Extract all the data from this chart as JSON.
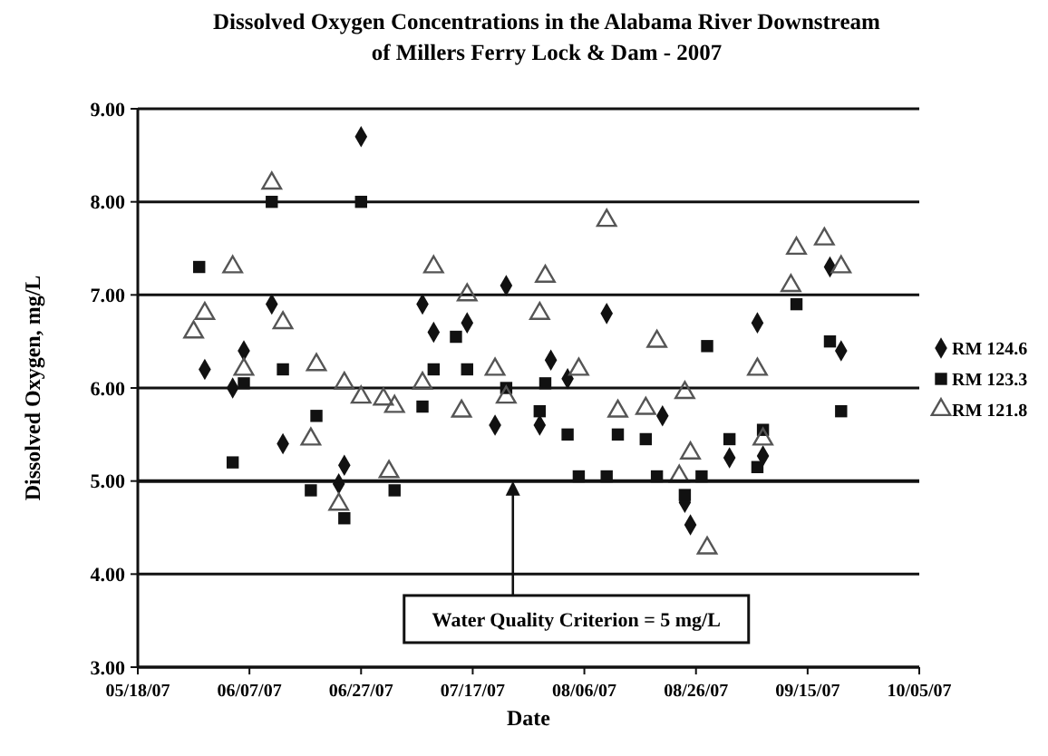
{
  "chart_data": {
    "type": "scatter",
    "title": "Dissolved Oxygen Concentrations in the Alabama River Downstream\nof Millers Ferry Lock & Dam - 2007",
    "xlabel": "Date",
    "ylabel": "Dissolved Oxygen, mg/L",
    "xlim": [
      "2007-05-18",
      "2007-10-05"
    ],
    "xticks": [
      {
        "value": "2007-05-18",
        "label": "05/18/07"
      },
      {
        "value": "2007-06-07",
        "label": "06/07/07"
      },
      {
        "value": "2007-06-27",
        "label": "06/27/07"
      },
      {
        "value": "2007-07-17",
        "label": "07/17/07"
      },
      {
        "value": "2007-08-06",
        "label": "08/06/07"
      },
      {
        "value": "2007-08-26",
        "label": "08/26/07"
      },
      {
        "value": "2007-09-15",
        "label": "09/15/07"
      },
      {
        "value": "2007-10-05",
        "label": "10/05/07"
      }
    ],
    "ylim": [
      3,
      9
    ],
    "yticks": [
      {
        "value": 3,
        "label": "3.00"
      },
      {
        "value": 4,
        "label": "4.00"
      },
      {
        "value": 5,
        "label": "5.00"
      },
      {
        "value": 6,
        "label": "6.00"
      },
      {
        "value": 7,
        "label": "7.00"
      },
      {
        "value": 8,
        "label": "8.00"
      },
      {
        "value": 9,
        "label": "9.00"
      }
    ],
    "grid": "y",
    "legend": "right",
    "ref_lines": [
      {
        "axis": "y",
        "value": 5,
        "label": "Water Quality Criterion = 5 mg/L"
      }
    ],
    "series": [
      {
        "name": "RM 124.6",
        "color": "#111111",
        "marker": "diamond",
        "x": [
          "2007-05-30",
          "2007-06-04",
          "2007-06-06",
          "2007-06-11",
          "2007-06-13",
          "2007-06-23",
          "2007-06-24",
          "2007-06-27",
          "2007-07-08",
          "2007-07-10",
          "2007-07-16",
          "2007-07-21",
          "2007-07-23",
          "2007-07-29",
          "2007-07-31",
          "2007-08-03",
          "2007-08-10",
          "2007-08-20",
          "2007-08-24",
          "2007-08-25",
          "2007-09-01",
          "2007-09-06",
          "2007-09-07",
          "2007-09-19",
          "2007-09-21"
        ],
        "values": [
          6.2,
          6.0,
          6.4,
          6.9,
          5.4,
          4.97,
          5.17,
          8.7,
          6.9,
          6.6,
          6.7,
          5.6,
          7.1,
          5.6,
          6.3,
          6.1,
          6.8,
          5.7,
          4.77,
          4.53,
          5.25,
          6.7,
          5.27,
          7.3,
          6.4
        ]
      },
      {
        "name": "RM 123.3",
        "color": "#111111",
        "marker": "square",
        "x": [
          "2007-05-29",
          "2007-06-04",
          "2007-06-06",
          "2007-06-11",
          "2007-06-13",
          "2007-06-18",
          "2007-06-19",
          "2007-06-24",
          "2007-06-27",
          "2007-07-03",
          "2007-07-08",
          "2007-07-10",
          "2007-07-14",
          "2007-07-16",
          "2007-07-23",
          "2007-07-29",
          "2007-07-30",
          "2007-08-03",
          "2007-08-05",
          "2007-08-10",
          "2007-08-12",
          "2007-08-17",
          "2007-08-19",
          "2007-08-24",
          "2007-08-27",
          "2007-08-28",
          "2007-09-01",
          "2007-09-06",
          "2007-09-07",
          "2007-09-13",
          "2007-09-19",
          "2007-09-21"
        ],
        "values": [
          7.3,
          5.2,
          6.05,
          8.0,
          6.2,
          4.9,
          5.7,
          4.6,
          8.0,
          4.9,
          5.8,
          6.2,
          6.55,
          6.2,
          6.0,
          5.75,
          6.05,
          5.5,
          5.05,
          5.05,
          5.5,
          5.45,
          5.05,
          4.85,
          5.05,
          6.45,
          5.45,
          5.15,
          5.55,
          6.9,
          6.5,
          5.75
        ]
      },
      {
        "name": "RM 121.8",
        "color": "#555555",
        "marker": "triangle",
        "x": [
          "2007-05-28",
          "2007-05-30",
          "2007-06-04",
          "2007-06-06",
          "2007-06-11",
          "2007-06-13",
          "2007-06-18",
          "2007-06-19",
          "2007-06-23",
          "2007-06-24",
          "2007-06-27",
          "2007-07-01",
          "2007-07-02",
          "2007-07-03",
          "2007-07-08",
          "2007-07-10",
          "2007-07-15",
          "2007-07-16",
          "2007-07-21",
          "2007-07-23",
          "2007-07-29",
          "2007-07-30",
          "2007-08-05",
          "2007-08-10",
          "2007-08-12",
          "2007-08-17",
          "2007-08-19",
          "2007-08-23",
          "2007-08-24",
          "2007-08-25",
          "2007-08-28",
          "2007-09-06",
          "2007-09-07",
          "2007-09-12",
          "2007-09-13",
          "2007-09-18",
          "2007-09-21"
        ],
        "values": [
          6.6,
          6.8,
          7.3,
          6.2,
          8.2,
          6.7,
          5.45,
          6.25,
          4.75,
          6.05,
          5.9,
          5.88,
          5.1,
          5.8,
          6.05,
          7.3,
          5.75,
          7.0,
          6.2,
          5.9,
          6.8,
          7.2,
          6.2,
          7.8,
          5.75,
          5.78,
          6.5,
          5.05,
          5.95,
          5.3,
          4.28,
          6.2,
          5.45,
          7.1,
          7.5,
          7.6,
          7.3
        ]
      }
    ]
  }
}
